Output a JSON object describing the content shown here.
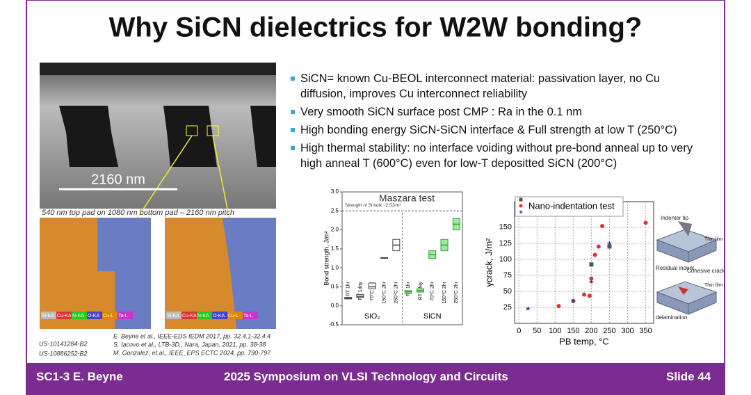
{
  "title": "Why SiCN dielectrics for W2W bonding?",
  "bullets": [
    "SiCN= known Cu-BEOL interconnect material:  passivation layer, no Cu diffusion, improves Cu interconnect reliability",
    "Very smooth SiCN surface post CMP : Ra in the 0.1 nm",
    "High bonding energy SiCN-SiCN interface & Full strength at low T (250°C)",
    "High thermal stability: no interface voiding without pre-bond anneal up to very high anneal T (600°C) even for low-T depositted SiCN  (200°C)"
  ],
  "images": {
    "sem_scale": "2160 nm",
    "caption": "540 nm top pad on 1080 nm bottom pad – 2160 nm pitch",
    "eds_legend": [
      "Si-KA",
      "Cu-KA",
      "N-KA",
      "O-KA",
      "Cu-L",
      "Ta-L"
    ]
  },
  "references": [
    "E. Beyne et al., IEEE-EDS IEDM 2017, pp. 32.4.1-32.4.4",
    "S. Iacovo et al., LTB-3D,, Nara, Japan, 2021, pp. 38-38",
    "M. Gonzalez, et.al., IEEE_EPS ECTC 2024, pp. 790-797"
  ],
  "patents": [
    "US-10141284-B2",
    "US-10886252-B2"
  ],
  "charts": [
    {
      "type": "box",
      "title": "Maszara test",
      "y_label": "Bond strength, J/m²",
      "annotation": "Strength of Si bulk ~2.5J/m²",
      "reference_line": 2.5,
      "categories": [
        "RT 1hr",
        "RT 1day",
        "70°C 2hr",
        "150°C 2hr",
        "250°C 2hr"
      ],
      "series": [
        {
          "name": "SiO₂",
          "color": "#444444",
          "fill": "#ffffff",
          "q1": [
            0.18,
            0.22,
            0.45,
            1.25,
            1.45
          ],
          "median": [
            0.2,
            0.25,
            0.5,
            1.26,
            1.6
          ],
          "q3": [
            0.22,
            0.3,
            0.6,
            1.27,
            1.75
          ]
        },
        {
          "name": "SiCN",
          "color": "#3a9a3a",
          "fill": "#9fe89f",
          "q1": [
            0.33,
            0.36,
            1.25,
            1.45,
            2.0
          ],
          "median": [
            0.37,
            0.4,
            1.35,
            1.6,
            2.15
          ],
          "q3": [
            0.4,
            0.45,
            1.45,
            1.75,
            2.3
          ]
        }
      ],
      "ylim": [
        -0.5,
        3.0
      ],
      "yticks": [
        {
          "value": -0.5,
          "label": "-0.5"
        },
        {
          "value": 0,
          "label": "0.0"
        },
        {
          "value": 0.5,
          "label": "0.5"
        },
        {
          "value": 1,
          "label": "1.0"
        },
        {
          "value": 1.5,
          "label": "1.5"
        },
        {
          "value": 2,
          "label": "2.0"
        },
        {
          "value": 2.5,
          "label": "2.5"
        },
        {
          "value": 3,
          "label": "3.0"
        }
      ]
    },
    {
      "type": "scatter",
      "title": "Nano-indentation test",
      "x_label": "PB temp, °C",
      "y_label": "γcrack, J/m²",
      "xlim": [
        -12,
        372
      ],
      "ylim": [
        0,
        190
      ],
      "xticks": [
        0,
        50,
        100,
        150,
        200,
        250,
        300,
        350
      ],
      "yticks": [
        25,
        50,
        75,
        100,
        125,
        150
      ],
      "grid": true,
      "series": [
        {
          "color": "#555555",
          "marker": "square",
          "x": [
            200,
            250
          ],
          "values": [
            92,
            120
          ]
        },
        {
          "color": "#e0332b",
          "marker": "circle",
          "x": [
            110,
            150,
            180,
            195,
            200,
            210,
            220,
            230,
            350
          ],
          "values": [
            27,
            35,
            45,
            43,
            70,
            107,
            120,
            152,
            157
          ]
        },
        {
          "color": "#1f3fa8",
          "marker": "star",
          "x": [
            25,
            150,
            200,
            250
          ],
          "values": [
            23,
            35,
            65,
            125
          ]
        }
      ]
    }
  ],
  "diagram": {
    "labels": [
      "Indenter tip",
      "Thin film",
      "Residual indent",
      "Cohesive crack",
      "Thin film",
      "delamination"
    ]
  },
  "footer": {
    "left": "SC1-3   E. Beyne",
    "center": "2025 Symposium on VLSI Technology and Circuits",
    "right": "Slide 44"
  }
}
